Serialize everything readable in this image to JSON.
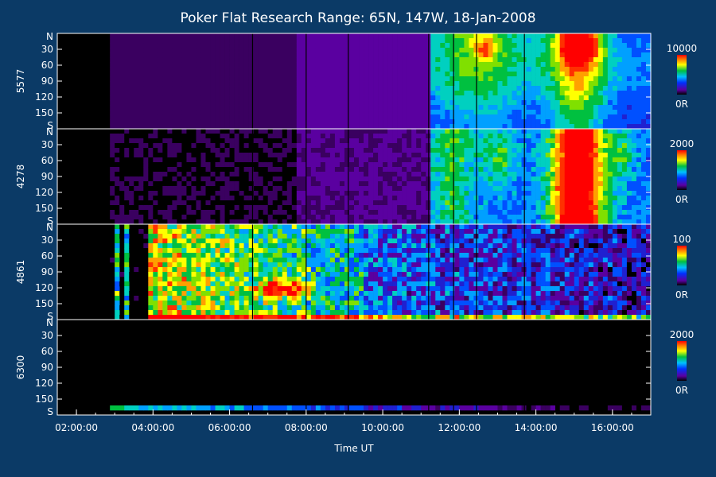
{
  "chart_data": {
    "type": "heatmap",
    "title": "Poker Flat Research Range: 65N, 147W, 18-Jan-2008",
    "xlabel": "Time UT",
    "x_range_hours": [
      1.5,
      17.0
    ],
    "x_ticks": [
      "02:00:00",
      "04:00:00",
      "06:00:00",
      "08:00:00",
      "10:00:00",
      "12:00:00",
      "14:00:00",
      "16:00:00"
    ],
    "x_tick_hours": [
      2,
      4,
      6,
      8,
      10,
      12,
      14,
      16
    ],
    "y_ticks": [
      "N",
      "30",
      "60",
      "90",
      "120",
      "150",
      "S"
    ],
    "y_tick_values": [
      0,
      30,
      60,
      90,
      120,
      150,
      180
    ],
    "panels": [
      {
        "label": "5577",
        "cb_max": "10000",
        "cb_min": "0R"
      },
      {
        "label": "4278",
        "cb_max": "2000",
        "cb_min": "0R"
      },
      {
        "label": "4861",
        "cb_max": "100",
        "cb_min": "0R"
      },
      {
        "label": "6300",
        "cb_max": "2000",
        "cb_min": "0R"
      }
    ],
    "colormap": [
      "#000000",
      "#3a0060",
      "#5a00a0",
      "#2020d0",
      "#0050ff",
      "#00a0ff",
      "#00d0c0",
      "#00c040",
      "#80e000",
      "#ffff00",
      "#ffa000",
      "#ff3000",
      "#ff0000"
    ]
  }
}
